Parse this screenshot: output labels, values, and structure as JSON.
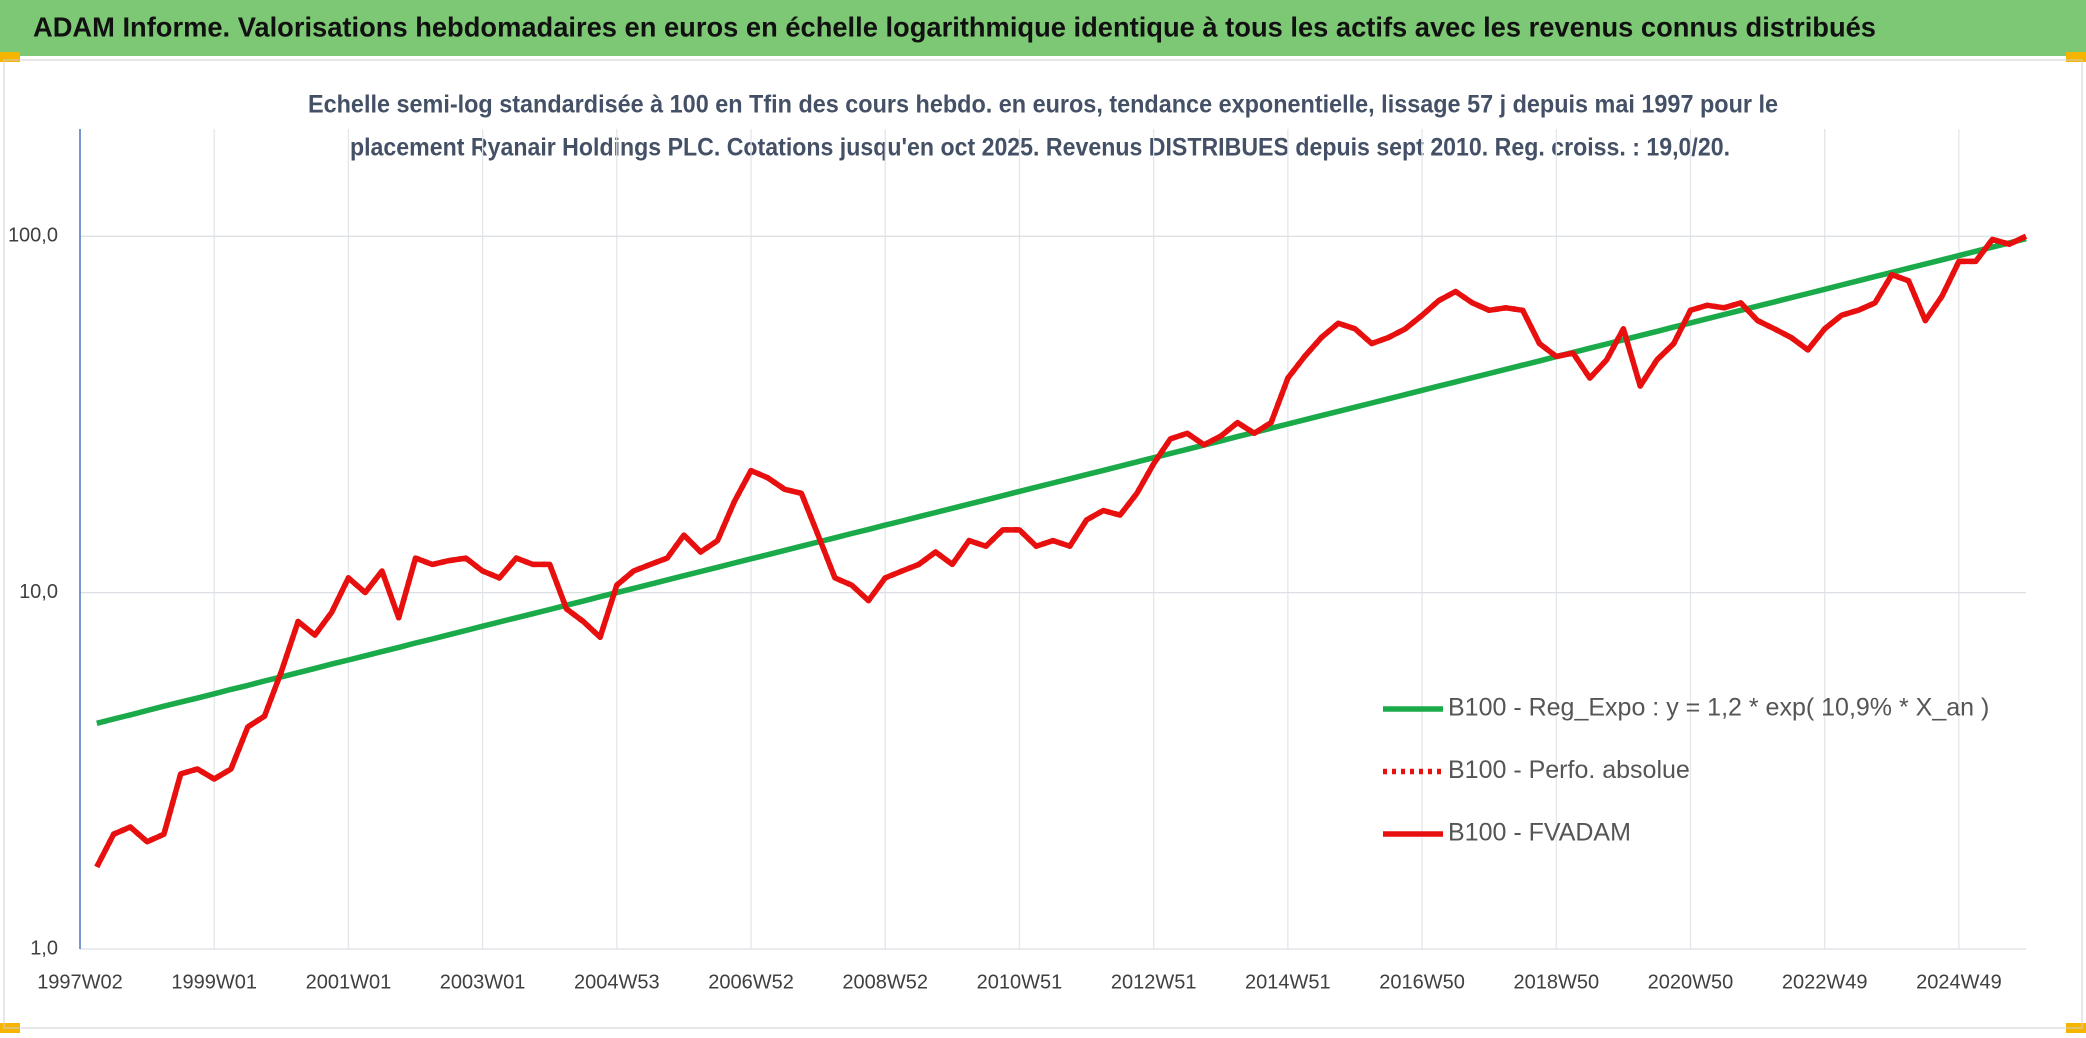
{
  "header": {
    "title": "ADAM Informe. Valorisations hebdomadaires en euros en échelle logarithmique identique à tous les actifs avec les revenus connus distribués"
  },
  "chart_data": {
    "type": "line",
    "subtitle": [
      "Echelle semi-log standardisée à 100 en Tfin des cours hebdo. en euros, tendance exponentielle, lissage 57 j depuis mai 1997 pour le",
      "placement Ryanair Holdings PLC. Cotations jusqu'en oct 2025. Revenus DISTRIBUES depuis sept 2010. Reg. croiss. : 19,0/20."
    ],
    "log_y": true,
    "grid": true,
    "legend": "lower-right",
    "ylim": [
      1,
      200
    ],
    "yticks": [
      {
        "value": 1,
        "label": "1,0"
      },
      {
        "value": 10,
        "label": "10,0"
      },
      {
        "value": 100,
        "label": "100,0"
      }
    ],
    "categories": [
      "1997W02",
      null,
      null,
      null,
      null,
      null,
      null,
      null,
      "1999W01",
      null,
      null,
      null,
      null,
      null,
      null,
      null,
      "2001W01",
      null,
      null,
      null,
      null,
      null,
      null,
      null,
      "2003W01",
      null,
      null,
      null,
      null,
      null,
      null,
      null,
      "2004W53",
      null,
      null,
      null,
      null,
      null,
      null,
      null,
      "2006W52",
      null,
      null,
      null,
      null,
      null,
      null,
      null,
      "2008W52",
      null,
      null,
      null,
      null,
      null,
      null,
      null,
      "2010W51",
      null,
      null,
      null,
      null,
      null,
      null,
      null,
      "2012W51",
      null,
      null,
      null,
      null,
      null,
      null,
      null,
      "2014W51",
      null,
      null,
      null,
      null,
      null,
      null,
      null,
      "2016W50",
      null,
      null,
      null,
      null,
      null,
      null,
      null,
      "2018W50",
      null,
      null,
      null,
      null,
      null,
      null,
      null,
      "2020W50",
      null,
      null,
      null,
      null,
      null,
      null,
      null,
      "2022W49",
      null,
      null,
      null,
      null,
      null,
      null,
      null,
      "2024W49",
      null,
      null,
      null,
      null
    ],
    "series": [
      {
        "name": "B100 - Reg_Expo : y = 1,2 * exp( 10,9% *  X_an )",
        "color": "#1aaa4a",
        "style": "solid",
        "values": [
          null,
          4.3,
          4.42,
          4.54,
          4.67,
          4.8,
          4.93,
          5.06,
          5.2,
          5.35,
          5.49,
          5.65,
          5.8,
          5.96,
          6.13,
          6.3,
          6.47,
          6.65,
          6.83,
          7.02,
          7.22,
          7.41,
          7.62,
          7.83,
          8.05,
          8.27,
          8.5,
          8.73,
          8.97,
          9.22,
          9.47,
          9.74,
          10.0,
          10.28,
          10.56,
          10.86,
          11.16,
          11.46,
          11.78,
          12.11,
          12.44,
          12.78,
          13.14,
          13.5,
          13.87,
          14.25,
          14.65,
          15.05,
          15.47,
          15.89,
          16.33,
          16.78,
          17.25,
          17.72,
          18.21,
          18.71,
          19.23,
          19.76,
          20.31,
          20.87,
          21.44,
          22.03,
          22.64,
          23.27,
          23.91,
          24.57,
          25.25,
          25.94,
          26.66,
          27.4,
          28.15,
          28.93,
          29.73,
          30.55,
          31.39,
          32.25,
          33.14,
          34.06,
          35.0,
          35.96,
          36.96,
          37.98,
          39.02,
          40.1,
          41.21,
          42.34,
          43.51,
          44.71,
          45.95,
          47.21,
          48.52,
          49.86,
          51.23,
          52.64,
          54.1,
          55.59,
          57.12,
          58.7,
          60.32,
          61.98,
          63.69,
          65.45,
          67.25,
          69.11,
          71.01,
          72.97,
          74.98,
          77.05,
          79.18,
          81.36,
          83.61,
          85.91,
          88.28,
          90.72,
          93.22,
          95.8,
          98.44
        ]
      },
      {
        "name": "B100 - Perfo. absolue",
        "color": "#e8100f",
        "style": "dotted",
        "values": [
          null,
          1.7,
          2.1,
          2.2,
          2.0,
          2.1,
          3.1,
          3.2,
          3.0,
          3.2,
          4.2,
          4.5,
          6.0,
          8.3,
          7.6,
          8.8,
          11.0,
          10.0,
          11.5,
          8.5,
          12.5,
          12.0,
          12.3,
          12.5,
          11.5,
          11.0,
          12.5,
          12.0,
          12.0,
          9.0,
          8.3,
          7.5,
          10.5,
          11.5,
          12.0,
          12.5,
          14.5,
          13.0,
          14.0,
          18.0,
          22.0,
          21.0,
          19.5,
          19.0,
          14.5,
          11.0,
          10.5,
          9.5,
          11.0,
          11.5,
          12.0,
          13.0,
          12.0,
          14.0,
          13.5,
          15.0,
          15.0,
          13.5,
          14.0,
          13.5,
          16.0,
          17.0,
          16.5,
          19.0,
          23.0,
          27.0,
          28.0,
          26.0,
          27.5,
          30.0,
          28.0,
          30.0,
          40.0,
          46.0,
          52.0,
          57.0,
          55.0,
          50.0,
          52.0,
          55.0,
          60.0,
          66.0,
          70.0,
          65.0,
          62.0,
          63.0,
          62.0,
          50.0,
          46.0,
          47.0,
          40.0,
          45.0,
          55.0,
          38.0,
          45.0,
          50.0,
          62.0,
          64.0,
          63.0,
          65.0,
          58.0,
          55.0,
          52.0,
          48.0,
          55.0,
          60.0,
          62.0,
          65.0,
          78.0,
          75.0,
          58.0,
          68.0,
          85.0,
          85.0,
          98.0,
          95.0,
          100.0
        ]
      },
      {
        "name": "B100 - FVADAM",
        "color": "#e8100f",
        "style": "solid",
        "values": [
          null,
          1.7,
          2.1,
          2.2,
          2.0,
          2.1,
          3.1,
          3.2,
          3.0,
          3.2,
          4.2,
          4.5,
          6.0,
          8.3,
          7.6,
          8.8,
          11.0,
          10.0,
          11.5,
          8.5,
          12.5,
          12.0,
          12.3,
          12.5,
          11.5,
          11.0,
          12.5,
          12.0,
          12.0,
          9.0,
          8.3,
          7.5,
          10.5,
          11.5,
          12.0,
          12.5,
          14.5,
          13.0,
          14.0,
          18.0,
          22.0,
          21.0,
          19.5,
          19.0,
          14.5,
          11.0,
          10.5,
          9.5,
          11.0,
          11.5,
          12.0,
          13.0,
          12.0,
          14.0,
          13.5,
          15.0,
          15.0,
          13.5,
          14.0,
          13.5,
          16.0,
          17.0,
          16.5,
          19.0,
          23.0,
          27.0,
          28.0,
          26.0,
          27.5,
          30.0,
          28.0,
          30.0,
          40.0,
          46.0,
          52.0,
          57.0,
          55.0,
          50.0,
          52.0,
          55.0,
          60.0,
          66.0,
          70.0,
          65.0,
          62.0,
          63.0,
          62.0,
          50.0,
          46.0,
          47.0,
          40.0,
          45.0,
          55.0,
          38.0,
          45.0,
          50.0,
          62.0,
          64.0,
          63.0,
          65.0,
          58.0,
          55.0,
          52.0,
          48.0,
          55.0,
          60.0,
          62.0,
          65.0,
          78.0,
          75.0,
          58.0,
          68.0,
          85.0,
          85.0,
          98.0,
          95.0,
          100.0
        ]
      }
    ]
  }
}
